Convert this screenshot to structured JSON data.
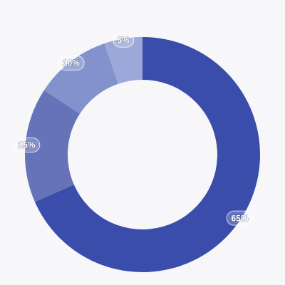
{
  "chart_data": {
    "type": "donut",
    "values": [
      65,
      15,
      10,
      5
    ],
    "value_labels": [
      "65%",
      "15%",
      "10%",
      "5%"
    ],
    "colors": [
      "#3a4dab",
      "#6673b9",
      "#8391cc",
      "#9ca7da"
    ]
  }
}
